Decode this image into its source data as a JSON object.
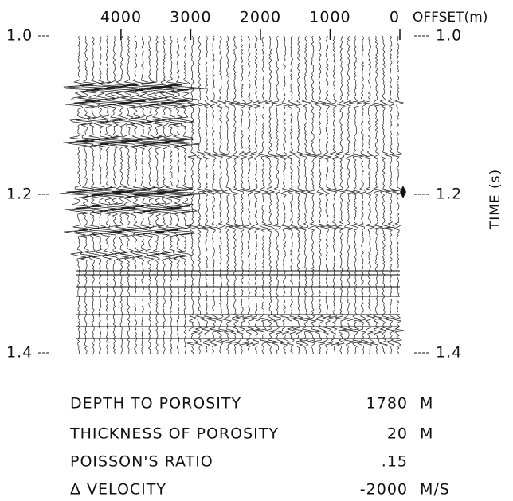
{
  "chart_data": {
    "type": "seismic",
    "x_label": "OFFSET(m)",
    "y_label": "TIME (s)",
    "xlim": [
      4650,
      0
    ],
    "xticks": [
      4000,
      3000,
      2000,
      1000,
      0
    ],
    "ylim": [
      1.0,
      1.4
    ],
    "yticks": [
      {
        "value": 1,
        "label": "1.0"
      },
      1.2,
      1.4
    ],
    "parameters": [
      {
        "label": "DEPTH TO POROSITY",
        "value": "1780",
        "unit": "M"
      },
      {
        "label": "THICKNESS OF POROSITY",
        "value": "20",
        "unit": "M"
      },
      {
        "label": "POISSON'S RATIO",
        "value": ".15"
      },
      {
        "label": "Δ VELOCITY",
        "value": "-2000",
        "unit": "M/S"
      }
    ]
  }
}
